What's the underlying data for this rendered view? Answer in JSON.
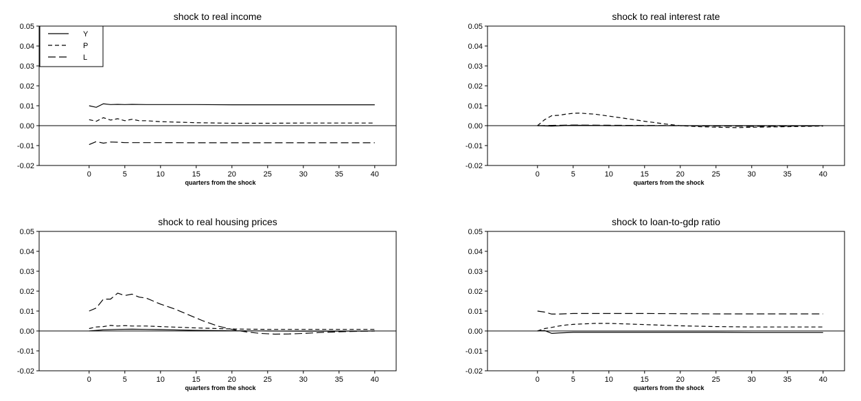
{
  "chart_data": [
    {
      "type": "line",
      "title": "shock to real income",
      "xlabel": "quarters from the shock",
      "ylabel": "",
      "xlim": [
        -7,
        43
      ],
      "ylim": [
        -0.02,
        0.05
      ],
      "xticks": [
        0,
        5,
        10,
        15,
        20,
        25,
        30,
        35,
        40
      ],
      "yticks": [
        -0.02,
        -0.01,
        0.0,
        0.01,
        0.02,
        0.03,
        0.04,
        0.05
      ],
      "ytick_labels": [
        "-0.02",
        "-0.01",
        "0.00",
        "0.01",
        "0.02",
        "0.03",
        "0.04",
        "0.05"
      ],
      "zero_line": true,
      "grid": false,
      "legend": {
        "position": "top-left",
        "entries": [
          "Y",
          "P",
          "L"
        ]
      },
      "series": [
        {
          "name": "Y",
          "style": "solid",
          "x": [
            0,
            1,
            2,
            3,
            4,
            5,
            6,
            8,
            10,
            15,
            20,
            25,
            30,
            35,
            40
          ],
          "y": [
            0.01,
            0.0092,
            0.011,
            0.0106,
            0.0107,
            0.0106,
            0.0107,
            0.0106,
            0.0106,
            0.0106,
            0.0105,
            0.0105,
            0.0105,
            0.0105,
            0.0105
          ]
        },
        {
          "name": "P",
          "style": "short-dash",
          "x": [
            0,
            1,
            2,
            3,
            4,
            5,
            6,
            7,
            8,
            10,
            15,
            20,
            25,
            30,
            35,
            40
          ],
          "y": [
            0.003,
            0.0022,
            0.004,
            0.0028,
            0.0035,
            0.0025,
            0.0032,
            0.0025,
            0.0025,
            0.002,
            0.0015,
            0.0012,
            0.0012,
            0.0013,
            0.0013,
            0.0013
          ]
        },
        {
          "name": "L",
          "style": "long-dash",
          "x": [
            0,
            1,
            2,
            3,
            4,
            5,
            6,
            8,
            10,
            15,
            20,
            25,
            30,
            35,
            40
          ],
          "y": [
            -0.0095,
            -0.008,
            -0.0088,
            -0.0082,
            -0.0083,
            -0.0085,
            -0.0085,
            -0.0085,
            -0.0085,
            -0.0086,
            -0.0086,
            -0.0086,
            -0.0086,
            -0.0086,
            -0.0086
          ]
        }
      ]
    },
    {
      "type": "line",
      "title": "shock to real interest rate",
      "xlabel": "quarters from the shock",
      "ylabel": "",
      "xlim": [
        -7,
        43
      ],
      "ylim": [
        -0.02,
        0.05
      ],
      "xticks": [
        0,
        5,
        10,
        15,
        20,
        25,
        30,
        35,
        40
      ],
      "yticks": [
        -0.02,
        -0.01,
        0.0,
        0.01,
        0.02,
        0.03,
        0.04,
        0.05
      ],
      "ytick_labels": [
        "-0.02",
        "-0.01",
        "0.00",
        "0.01",
        "0.02",
        "0.03",
        "0.04",
        "0.05"
      ],
      "zero_line": true,
      "grid": false,
      "series": [
        {
          "name": "Y",
          "style": "solid",
          "x": [
            0,
            2,
            5,
            10,
            15,
            20,
            25,
            30,
            35,
            40
          ],
          "y": [
            0.0,
            -0.0002,
            0.0002,
            0.0,
            0.0,
            0.0,
            0.0,
            0.0,
            0.0,
            0.0
          ]
        },
        {
          "name": "P",
          "style": "short-dash",
          "x": [
            0,
            1,
            2,
            3,
            4,
            5,
            6,
            7,
            8,
            10,
            12,
            15,
            18,
            20,
            22,
            25,
            28,
            30,
            35,
            40
          ],
          "y": [
            0.0,
            0.003,
            0.005,
            0.0052,
            0.0058,
            0.0062,
            0.0063,
            0.006,
            0.0058,
            0.0048,
            0.0038,
            0.0022,
            0.0008,
            0.0,
            -0.0004,
            -0.0008,
            -0.001,
            -0.0008,
            -0.0005,
            -0.0002
          ]
        },
        {
          "name": "L",
          "style": "long-dash",
          "x": [
            0,
            5,
            10,
            15,
            20,
            25,
            30,
            35,
            40
          ],
          "y": [
            0.0,
            0.0003,
            0.0002,
            0.0001,
            0.0,
            -0.0002,
            -0.0003,
            -0.0002,
            -0.0001
          ]
        }
      ]
    },
    {
      "type": "line",
      "title": "shock to real housing prices",
      "xlabel": "quarters from the shock",
      "ylabel": "",
      "xlim": [
        -7,
        43
      ],
      "ylim": [
        -0.02,
        0.05
      ],
      "xticks": [
        0,
        5,
        10,
        15,
        20,
        25,
        30,
        35,
        40
      ],
      "yticks": [
        -0.02,
        -0.01,
        0.0,
        0.01,
        0.02,
        0.03,
        0.04,
        0.05
      ],
      "ytick_labels": [
        "-0.02",
        "-0.01",
        "0.00",
        "0.01",
        "0.02",
        "0.03",
        "0.04",
        "0.05"
      ],
      "zero_line": true,
      "grid": false,
      "series": [
        {
          "name": "Y",
          "style": "solid",
          "x": [
            0,
            2,
            4,
            6,
            8,
            10,
            15,
            20,
            25,
            30,
            35,
            40
          ],
          "y": [
            0.0,
            0.0006,
            0.0008,
            0.0009,
            0.0008,
            0.0007,
            0.0003,
            0.0001,
            0.0,
            -0.0001,
            -0.0001,
            0.0
          ]
        },
        {
          "name": "P",
          "style": "short-dash",
          "x": [
            0,
            1,
            2,
            3,
            4,
            5,
            6,
            8,
            10,
            15,
            20,
            25,
            30,
            35,
            40
          ],
          "y": [
            0.0012,
            0.002,
            0.0022,
            0.0028,
            0.0025,
            0.0027,
            0.0025,
            0.0025,
            0.0022,
            0.0015,
            0.001,
            0.0008,
            0.0008,
            0.0008,
            0.0008
          ]
        },
        {
          "name": "L",
          "style": "long-dash",
          "x": [
            0,
            1,
            2,
            3,
            4,
            5,
            6,
            7,
            8,
            9,
            10,
            12,
            14,
            16,
            18,
            20,
            22,
            24,
            26,
            28,
            30,
            33,
            36,
            40
          ],
          "y": [
            0.01,
            0.0115,
            0.016,
            0.016,
            0.019,
            0.0178,
            0.0185,
            0.017,
            0.0165,
            0.015,
            0.0135,
            0.011,
            0.008,
            0.005,
            0.0025,
            0.0008,
            -0.0005,
            -0.0012,
            -0.0016,
            -0.0015,
            -0.0012,
            -0.0007,
            -0.0003,
            0.0
          ]
        }
      ]
    },
    {
      "type": "line",
      "title": "shock to loan-to-gdp ratio",
      "xlabel": "quarters from the shock",
      "ylabel": "",
      "xlim": [
        -7,
        43
      ],
      "ylim": [
        -0.02,
        0.05
      ],
      "xticks": [
        0,
        5,
        10,
        15,
        20,
        25,
        30,
        35,
        40
      ],
      "yticks": [
        -0.02,
        -0.01,
        0.0,
        0.01,
        0.02,
        0.03,
        0.04,
        0.05
      ],
      "ytick_labels": [
        "-0.02",
        "-0.01",
        "0.00",
        "0.01",
        "0.02",
        "0.03",
        "0.04",
        "0.05"
      ],
      "zero_line": true,
      "grid": false,
      "series": [
        {
          "name": "Y",
          "style": "solid",
          "x": [
            0,
            1,
            2,
            3,
            5,
            10,
            15,
            20,
            25,
            30,
            35,
            40
          ],
          "y": [
            0.0,
            0.0002,
            -0.0012,
            -0.001,
            -0.0007,
            -0.0007,
            -0.0007,
            -0.0007,
            -0.0007,
            -0.0008,
            -0.0008,
            -0.0008
          ]
        },
        {
          "name": "P",
          "style": "short-dash",
          "x": [
            0,
            1,
            2,
            3,
            4,
            5,
            6,
            8,
            10,
            12,
            15,
            20,
            25,
            30,
            35,
            40
          ],
          "y": [
            0.0,
            0.0012,
            0.0018,
            0.0025,
            0.003,
            0.0033,
            0.0035,
            0.0038,
            0.0038,
            0.0036,
            0.0032,
            0.0026,
            0.0022,
            0.002,
            0.002,
            0.002
          ]
        },
        {
          "name": "L",
          "style": "long-dash",
          "x": [
            0,
            1,
            2,
            3,
            5,
            10,
            15,
            20,
            25,
            30,
            35,
            40
          ],
          "y": [
            0.01,
            0.0095,
            0.0085,
            0.0085,
            0.0088,
            0.0088,
            0.0088,
            0.0087,
            0.0086,
            0.0086,
            0.0086,
            0.0086
          ]
        }
      ]
    }
  ]
}
